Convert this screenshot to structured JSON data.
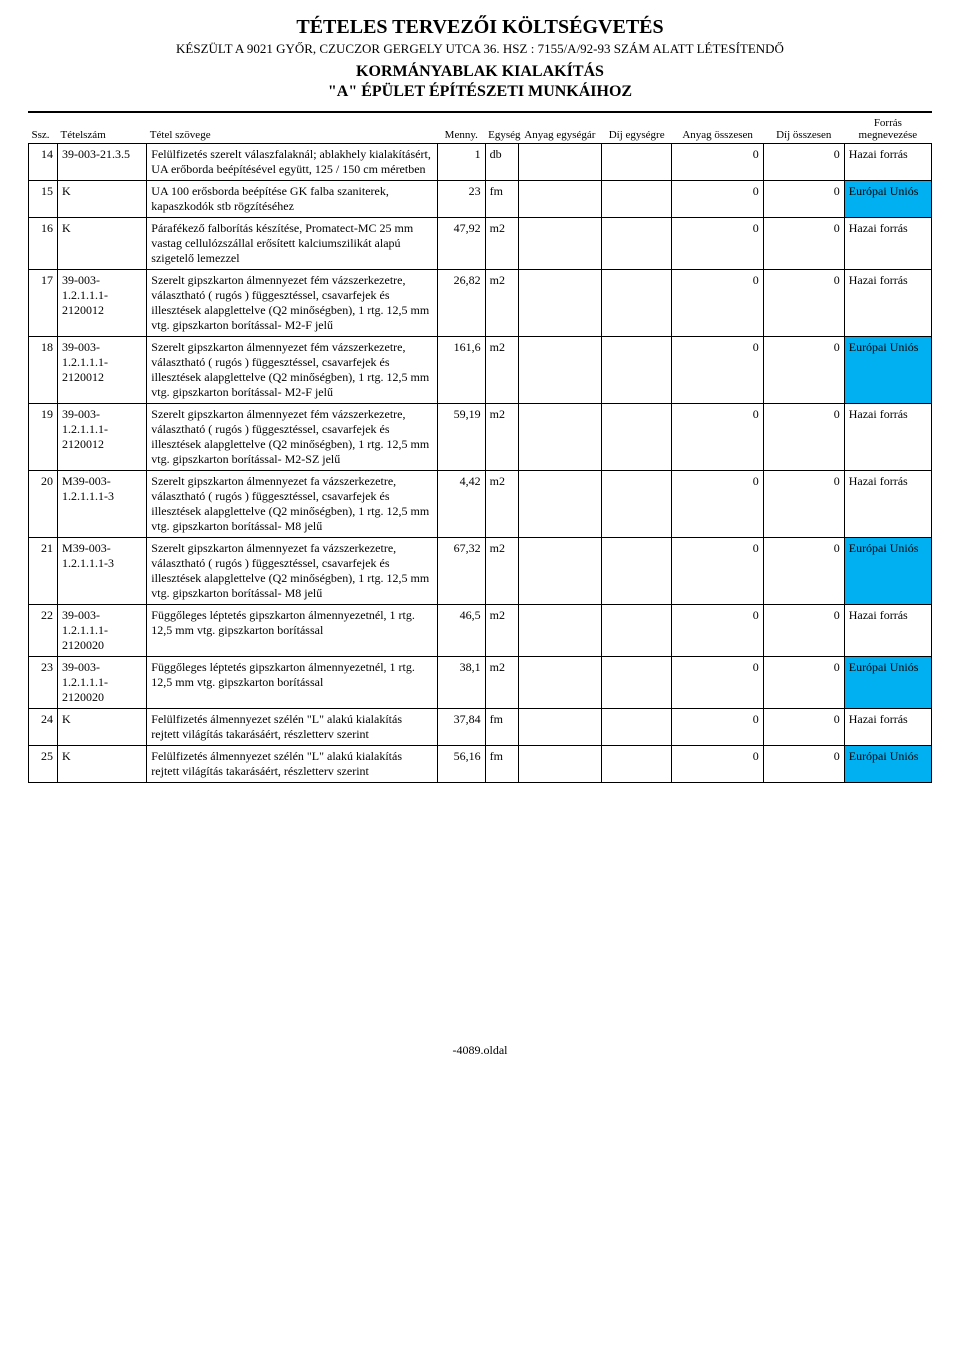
{
  "header": {
    "title_main": "TÉTELES TERVEZŐI KÖLTSÉGVETÉS",
    "subtitle": "KÉSZÜLT A 9021 GYŐR, CZUCZOR GERGELY UTCA 36. HSZ : 7155/A/92-93 SZÁM ALATT LÉTESÍTENDŐ",
    "title_2": "KORMÁNYABLAK KIALAKÍTÁS",
    "title_3": "\"A\" ÉPÜLET ÉPÍTÉSZETI MUNKÁIHOZ"
  },
  "columns": {
    "ssz": "Ssz.",
    "tetelszam": "Tételszám",
    "szoveg": "Tétel szövege",
    "menny": "Menny.",
    "egyseg": "Egység",
    "anyag_egysegar": "Anyag egységár",
    "dij_egysegre": "Díj egységre",
    "anyag_osszesen": "Anyag összesen",
    "dij_osszesen": "Díj  összesen",
    "forras_l1": "Forrás",
    "forras_l2": "megnevezése"
  },
  "rows": [
    {
      "ssz": "14",
      "tsz": "39-003-21.3.5",
      "szov": "Felülfizetés szerelt válaszfalaknál; ablakhely kialakításért, UA erőborda beépítésével együtt, 125 / 150 cm méretben",
      "menny": "1",
      "egys": "db",
      "ao": "0",
      "do": "0",
      "forras": "Hazai forrás",
      "eu": false
    },
    {
      "ssz": "15",
      "tsz": "K",
      "szov": "UA 100 erősborda beépítése GK falba szaniterek, kapaszkodók stb rögzítéséhez",
      "menny": "23",
      "egys": "fm",
      "ao": "0",
      "do": "0",
      "forras": "Európai Uniós",
      "eu": true
    },
    {
      "ssz": "16",
      "tsz": "K",
      "szov": "Párafékező falborítás készítése, Promatect-MC 25 mm vastag cellulózszállal erősített kalciumszilikát alapú szigetelő lemezzel",
      "menny": "47,92",
      "egys": "m2",
      "ao": "0",
      "do": "0",
      "forras": "Hazai forrás",
      "eu": false
    },
    {
      "ssz": "17",
      "tsz": "39-003-1.2.1.1.1-2120012",
      "szov": "Szerelt gipszkarton álmennyezet fém vázszerkezetre, választható ( rugós ) függesztéssel, csavarfejek és illesztések alapglettelve (Q2 minőségben), 1 rtg. 12,5 mm vtg. gipszkarton borítással- M2-F jelű",
      "menny": "26,82",
      "egys": "m2",
      "ao": "0",
      "do": "0",
      "forras": "Hazai forrás",
      "eu": false
    },
    {
      "ssz": "18",
      "tsz": "39-003-1.2.1.1.1-2120012",
      "szov": "Szerelt gipszkarton álmennyezet fém vázszerkezetre, választható ( rugós ) függesztéssel, csavarfejek és illesztések alapglettelve (Q2 minőségben), 1 rtg. 12,5 mm vtg. gipszkarton borítással- M2-F jelű",
      "menny": "161,6",
      "egys": "m2",
      "ao": "0",
      "do": "0",
      "forras": "Európai Uniós",
      "eu": true
    },
    {
      "ssz": "19",
      "tsz": "39-003-1.2.1.1.1-2120012",
      "szov": "Szerelt gipszkarton álmennyezet fém vázszerkezetre, választható ( rugós ) függesztéssel, csavarfejek és illesztések alapglettelve (Q2 minőségben), 1 rtg. 12,5 mm vtg. gipszkarton borítással- M2-SZ jelű",
      "menny": "59,19",
      "egys": "m2",
      "ao": "0",
      "do": "0",
      "forras": "Hazai forrás",
      "eu": false
    },
    {
      "ssz": "20",
      "tsz": "M39-003-1.2.1.1.1-3",
      "szov": "Szerelt gipszkarton álmennyezet fa vázszerkezetre, választható ( rugós ) függesztéssel, csavarfejek és illesztések alapglettelve (Q2 minőségben), 1 rtg. 12,5 mm vtg. gipszkarton borítással- M8 jelű",
      "menny": "4,42",
      "egys": "m2",
      "ao": "0",
      "do": "0",
      "forras": "Hazai forrás",
      "eu": false
    },
    {
      "ssz": "21",
      "tsz": "M39-003-1.2.1.1.1-3",
      "szov": "Szerelt gipszkarton álmennyezet fa vázszerkezetre, választható ( rugós ) függesztéssel, csavarfejek és illesztések alapglettelve (Q2 minőségben), 1 rtg. 12,5 mm vtg. gipszkarton borítással- M8 jelű",
      "menny": "67,32",
      "egys": "m2",
      "ao": "0",
      "do": "0",
      "forras": "Európai Uniós",
      "eu": true
    },
    {
      "ssz": "22",
      "tsz": "39-003-1.2.1.1.1-2120020",
      "szov": "Függőleges léptetés gipszkarton álmennyezetnél, 1 rtg. 12,5 mm vtg. gipszkarton borítással",
      "menny": "46,5",
      "egys": "m2",
      "ao": "0",
      "do": "0",
      "forras": "Hazai forrás",
      "eu": false
    },
    {
      "ssz": "23",
      "tsz": "39-003-1.2.1.1.1-2120020",
      "szov": "Függőleges léptetés gipszkarton álmennyezetnél, 1 rtg. 12,5 mm vtg. gipszkarton borítással",
      "menny": "38,1",
      "egys": "m2",
      "ao": "0",
      "do": "0",
      "forras": "Európai Uniós",
      "eu": true
    },
    {
      "ssz": "24",
      "tsz": "K",
      "szov": "Felülfizetés álmennyezet szélén \"L\" alakú kialakítás rejtett világítás takarásáért, részletterv szerint",
      "menny": "37,84",
      "egys": "fm",
      "ao": "0",
      "do": "0",
      "forras": "Hazai forrás",
      "eu": false
    },
    {
      "ssz": "25",
      "tsz": "K",
      "szov": "Felülfizetés álmennyezet szélén \"L\" alakú kialakítás rejtett világítás takarásáért, részletterv szerint",
      "menny": "56,16",
      "egys": "fm",
      "ao": "0",
      "do": "0",
      "forras": "Európai Uniós",
      "eu": true
    }
  ],
  "footer": "-4089.oldal",
  "colors": {
    "eu_highlight": "#00b0f0",
    "border": "#000000",
    "background": "#ffffff",
    "text": "#000000"
  }
}
